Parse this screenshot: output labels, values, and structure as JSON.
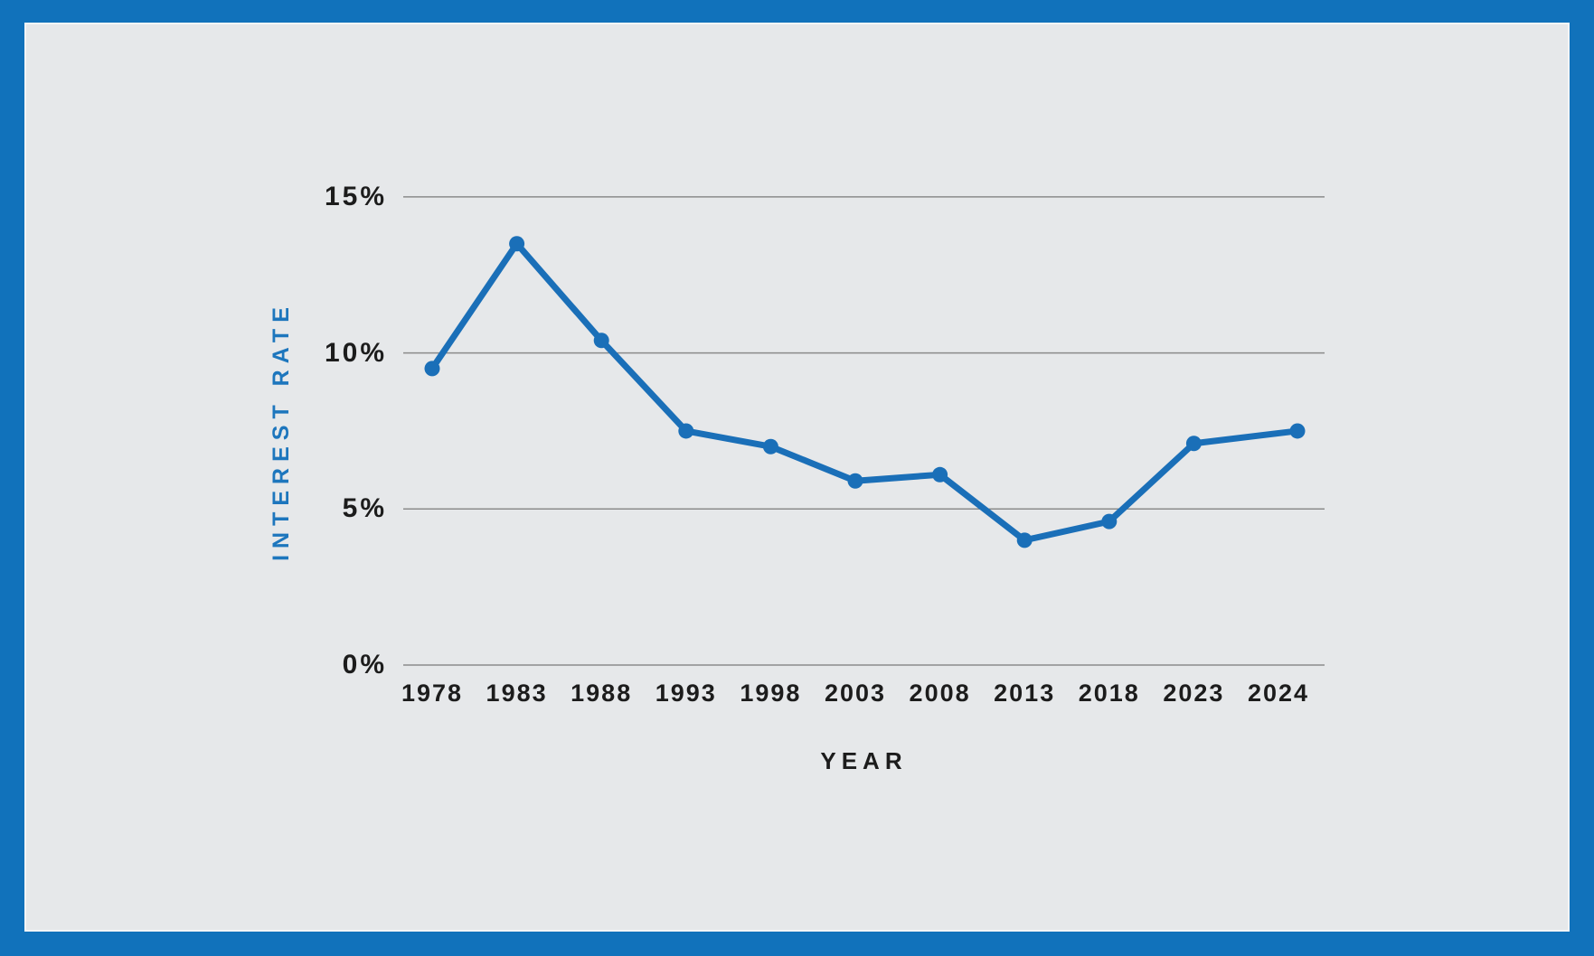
{
  "frame": {
    "border_color": "#1172bb",
    "panel_bg": "#e6e8ea",
    "panel_edge": "#f3f5f6"
  },
  "chart_data": {
    "type": "line",
    "title": "",
    "categories": [
      "1978",
      "1983",
      "1988",
      "1993",
      "1998",
      "2003",
      "2008",
      "2013",
      "2018",
      "2023",
      "2024"
    ],
    "series": [
      {
        "name": "Interest Rate",
        "values": [
          9.5,
          13.5,
          10.4,
          7.5,
          7.0,
          5.9,
          6.1,
          4.0,
          4.6,
          7.1,
          7.5
        ]
      }
    ],
    "xlabel": "YEAR",
    "ylabel": "INTEREST RATE",
    "yticks": [
      {
        "value": 0,
        "label": "0%"
      },
      {
        "value": 5,
        "label": "5%"
      },
      {
        "value": 10,
        "label": "10%"
      },
      {
        "value": 15,
        "label": "15%"
      }
    ],
    "ylim": [
      0,
      15
    ],
    "grid": true,
    "legend": "none",
    "colors": {
      "line": "#1a6fb8",
      "marker": "#1a6fb8",
      "grid": "#8b8b8b",
      "tick_text": "#1c1c1c",
      "axis_title_y": "#1d76bd",
      "axis_title_x": "#1c1c1c"
    }
  }
}
